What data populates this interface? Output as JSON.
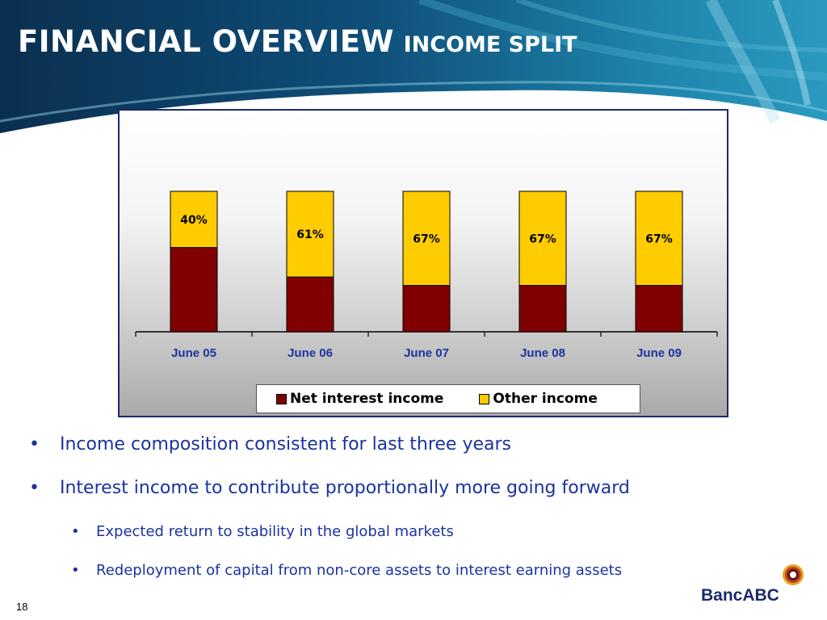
{
  "slide": {
    "title_main": "FINANCIAL OVERVIEW",
    "title_sub": "INCOME SPLIT",
    "page_number": "18"
  },
  "colors": {
    "header_dark": "#0b3a5e",
    "header_mid": "#1a6f96",
    "net_interest": "#800000",
    "other_income": "#ffcc00",
    "label_blue": "#1a33a0"
  },
  "chart_data": {
    "type": "bar",
    "stacked": true,
    "percent_stacked": true,
    "categories": [
      "June 05",
      "June 06",
      "June 07",
      "June 08",
      "June 09"
    ],
    "series": [
      {
        "name": "Net interest income",
        "values": [
          60,
          39,
          33,
          33,
          33
        ],
        "labels": [
          "60%",
          "39%",
          "33%",
          "33%",
          "33%"
        ]
      },
      {
        "name": "Other income",
        "values": [
          40,
          61,
          67,
          67,
          67
        ],
        "labels": [
          "40%",
          "61%",
          "67%",
          "67%",
          "67%"
        ]
      }
    ],
    "ylim": [
      0,
      100
    ],
    "legend_position": "bottom",
    "grid": false
  },
  "bullets": [
    {
      "level": 1,
      "text": "Income composition consistent for last three years"
    },
    {
      "level": 1,
      "text": "Interest income to contribute proportionally more going forward"
    },
    {
      "level": 2,
      "text": "Expected return to stability in the global markets"
    },
    {
      "level": 2,
      "text": "Redeployment of capital from non-core assets to interest earning assets"
    }
  ],
  "logo": {
    "text": "BancABC",
    "icon": "bancabc-ring-logo"
  }
}
